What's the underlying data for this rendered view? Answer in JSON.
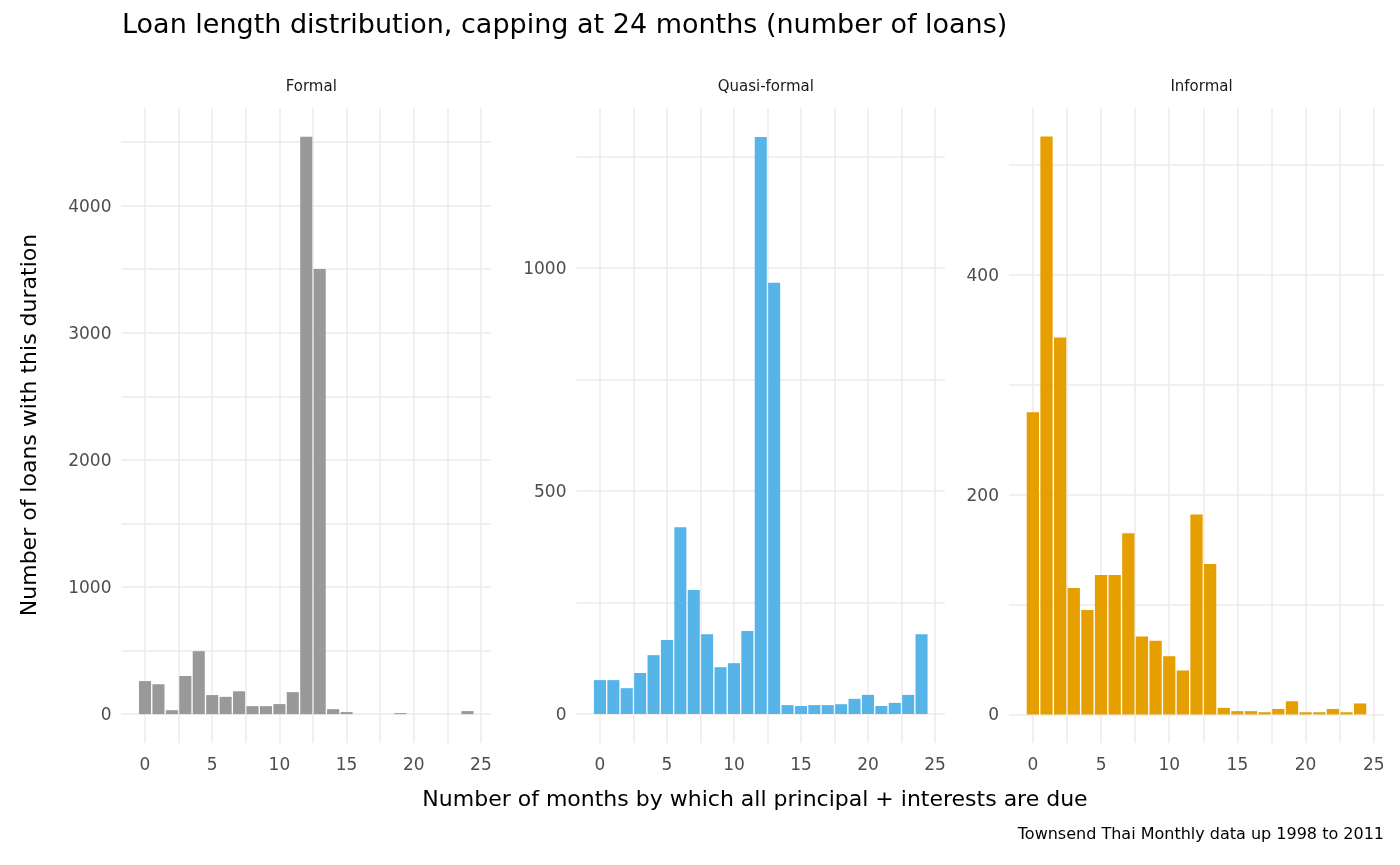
{
  "chart_data": [
    {
      "type": "bar",
      "title": "Loan length distribution, capping at 24 months (number of loans)",
      "subtitle": "Formal",
      "ylabel": "Number of loans with this duration",
      "x": [
        0,
        1,
        2,
        3,
        4,
        5,
        6,
        7,
        8,
        9,
        10,
        11,
        12,
        13,
        14,
        15,
        16,
        17,
        18,
        19,
        20,
        21,
        22,
        23,
        24
      ],
      "series": [
        {
          "color": "#999999",
          "values": [
            260,
            235,
            31,
            300,
            495,
            150,
            136,
            180,
            63,
            63,
            79,
            173,
            4540,
            3500,
            39,
            16,
            0,
            0,
            0,
            8,
            0,
            0,
            0,
            0,
            24
          ]
        }
      ],
      "xlim": [
        -1.75,
        25.75
      ],
      "xticks": [
        0,
        {
          "value": 2.5,
          "label": null
        },
        5,
        {
          "value": 7.5,
          "label": null
        },
        10,
        {
          "value": 12.5,
          "label": null
        },
        15,
        {
          "value": 17.5,
          "label": null
        },
        20,
        {
          "value": 22.5,
          "label": null
        },
        25
      ],
      "ylim": [
        -227,
        4767
      ],
      "yticks": [
        0,
        {
          "value": 500,
          "label": null
        },
        1000,
        {
          "value": 1500,
          "label": null
        },
        2000,
        {
          "value": 2500,
          "label": null
        },
        3000,
        {
          "value": 3500,
          "label": null
        },
        4000,
        {
          "value": 4500,
          "label": null
        }
      ],
      "grid": true
    },
    {
      "type": "bar",
      "subtitle": "Quasi-formal",
      "xlabel": "Number of months by which all principal + interests are due",
      "x": [
        0,
        1,
        2,
        3,
        4,
        5,
        6,
        7,
        8,
        9,
        10,
        11,
        12,
        13,
        14,
        15,
        16,
        17,
        18,
        19,
        20,
        21,
        22,
        23,
        24
      ],
      "series": [
        {
          "color": "#56b4e9",
          "values": [
            76,
            76,
            58,
            92,
            132,
            166,
            419,
            278,
            179,
            105,
            114,
            186,
            1294,
            967,
            20,
            18,
            20,
            20,
            22,
            34,
            43,
            18,
            25,
            43,
            179
          ]
        }
      ],
      "xlim": [
        -1.75,
        25.75
      ],
      "xticks": [
        0,
        {
          "value": 2.5,
          "label": null
        },
        5,
        {
          "value": 7.5,
          "label": null
        },
        10,
        {
          "value": 12.5,
          "label": null
        },
        15,
        {
          "value": 17.5,
          "label": null
        },
        20,
        {
          "value": 22.5,
          "label": null
        },
        25
      ],
      "ylim": [
        -65,
        1359
      ],
      "yticks": [
        0,
        {
          "value": 250,
          "label": null
        },
        500,
        {
          "value": 750,
          "label": null
        },
        1000,
        {
          "value": 1250,
          "label": null
        }
      ],
      "grid": true
    },
    {
      "type": "bar",
      "subtitle": "Informal",
      "annotations": [
        "Townsend Thai Monthly data up 1998 to 2011"
      ],
      "x": [
        0,
        1,
        2,
        3,
        4,
        5,
        6,
        7,
        8,
        9,
        10,
        11,
        12,
        13,
        14,
        15,
        16,
        17,
        18,
        19,
        20,
        21,
        22,
        23,
        24
      ],
      "series": [
        {
          "color": "#e69f00",
          "values": [
            275,
            526,
            343,
            115,
            95,
            127,
            127,
            165,
            71,
            67,
            53,
            40,
            182,
            137,
            6,
            3,
            3,
            2,
            5,
            12,
            2,
            2,
            5,
            2,
            10
          ]
        }
      ],
      "xlim": [
        -1.75,
        25.75
      ],
      "xticks": [
        0,
        {
          "value": 2.5,
          "label": null
        },
        5,
        {
          "value": 7.5,
          "label": null
        },
        10,
        {
          "value": 12.5,
          "label": null
        },
        15,
        {
          "value": 17.5,
          "label": null
        },
        20,
        {
          "value": 22.5,
          "label": null
        },
        25
      ],
      "ylim": [
        -26,
        552
      ],
      "yticks": [
        0,
        {
          "value": 100,
          "label": null
        },
        200,
        {
          "value": 300,
          "label": null
        },
        400,
        {
          "value": 500,
          "label": null
        }
      ],
      "grid": true
    }
  ]
}
